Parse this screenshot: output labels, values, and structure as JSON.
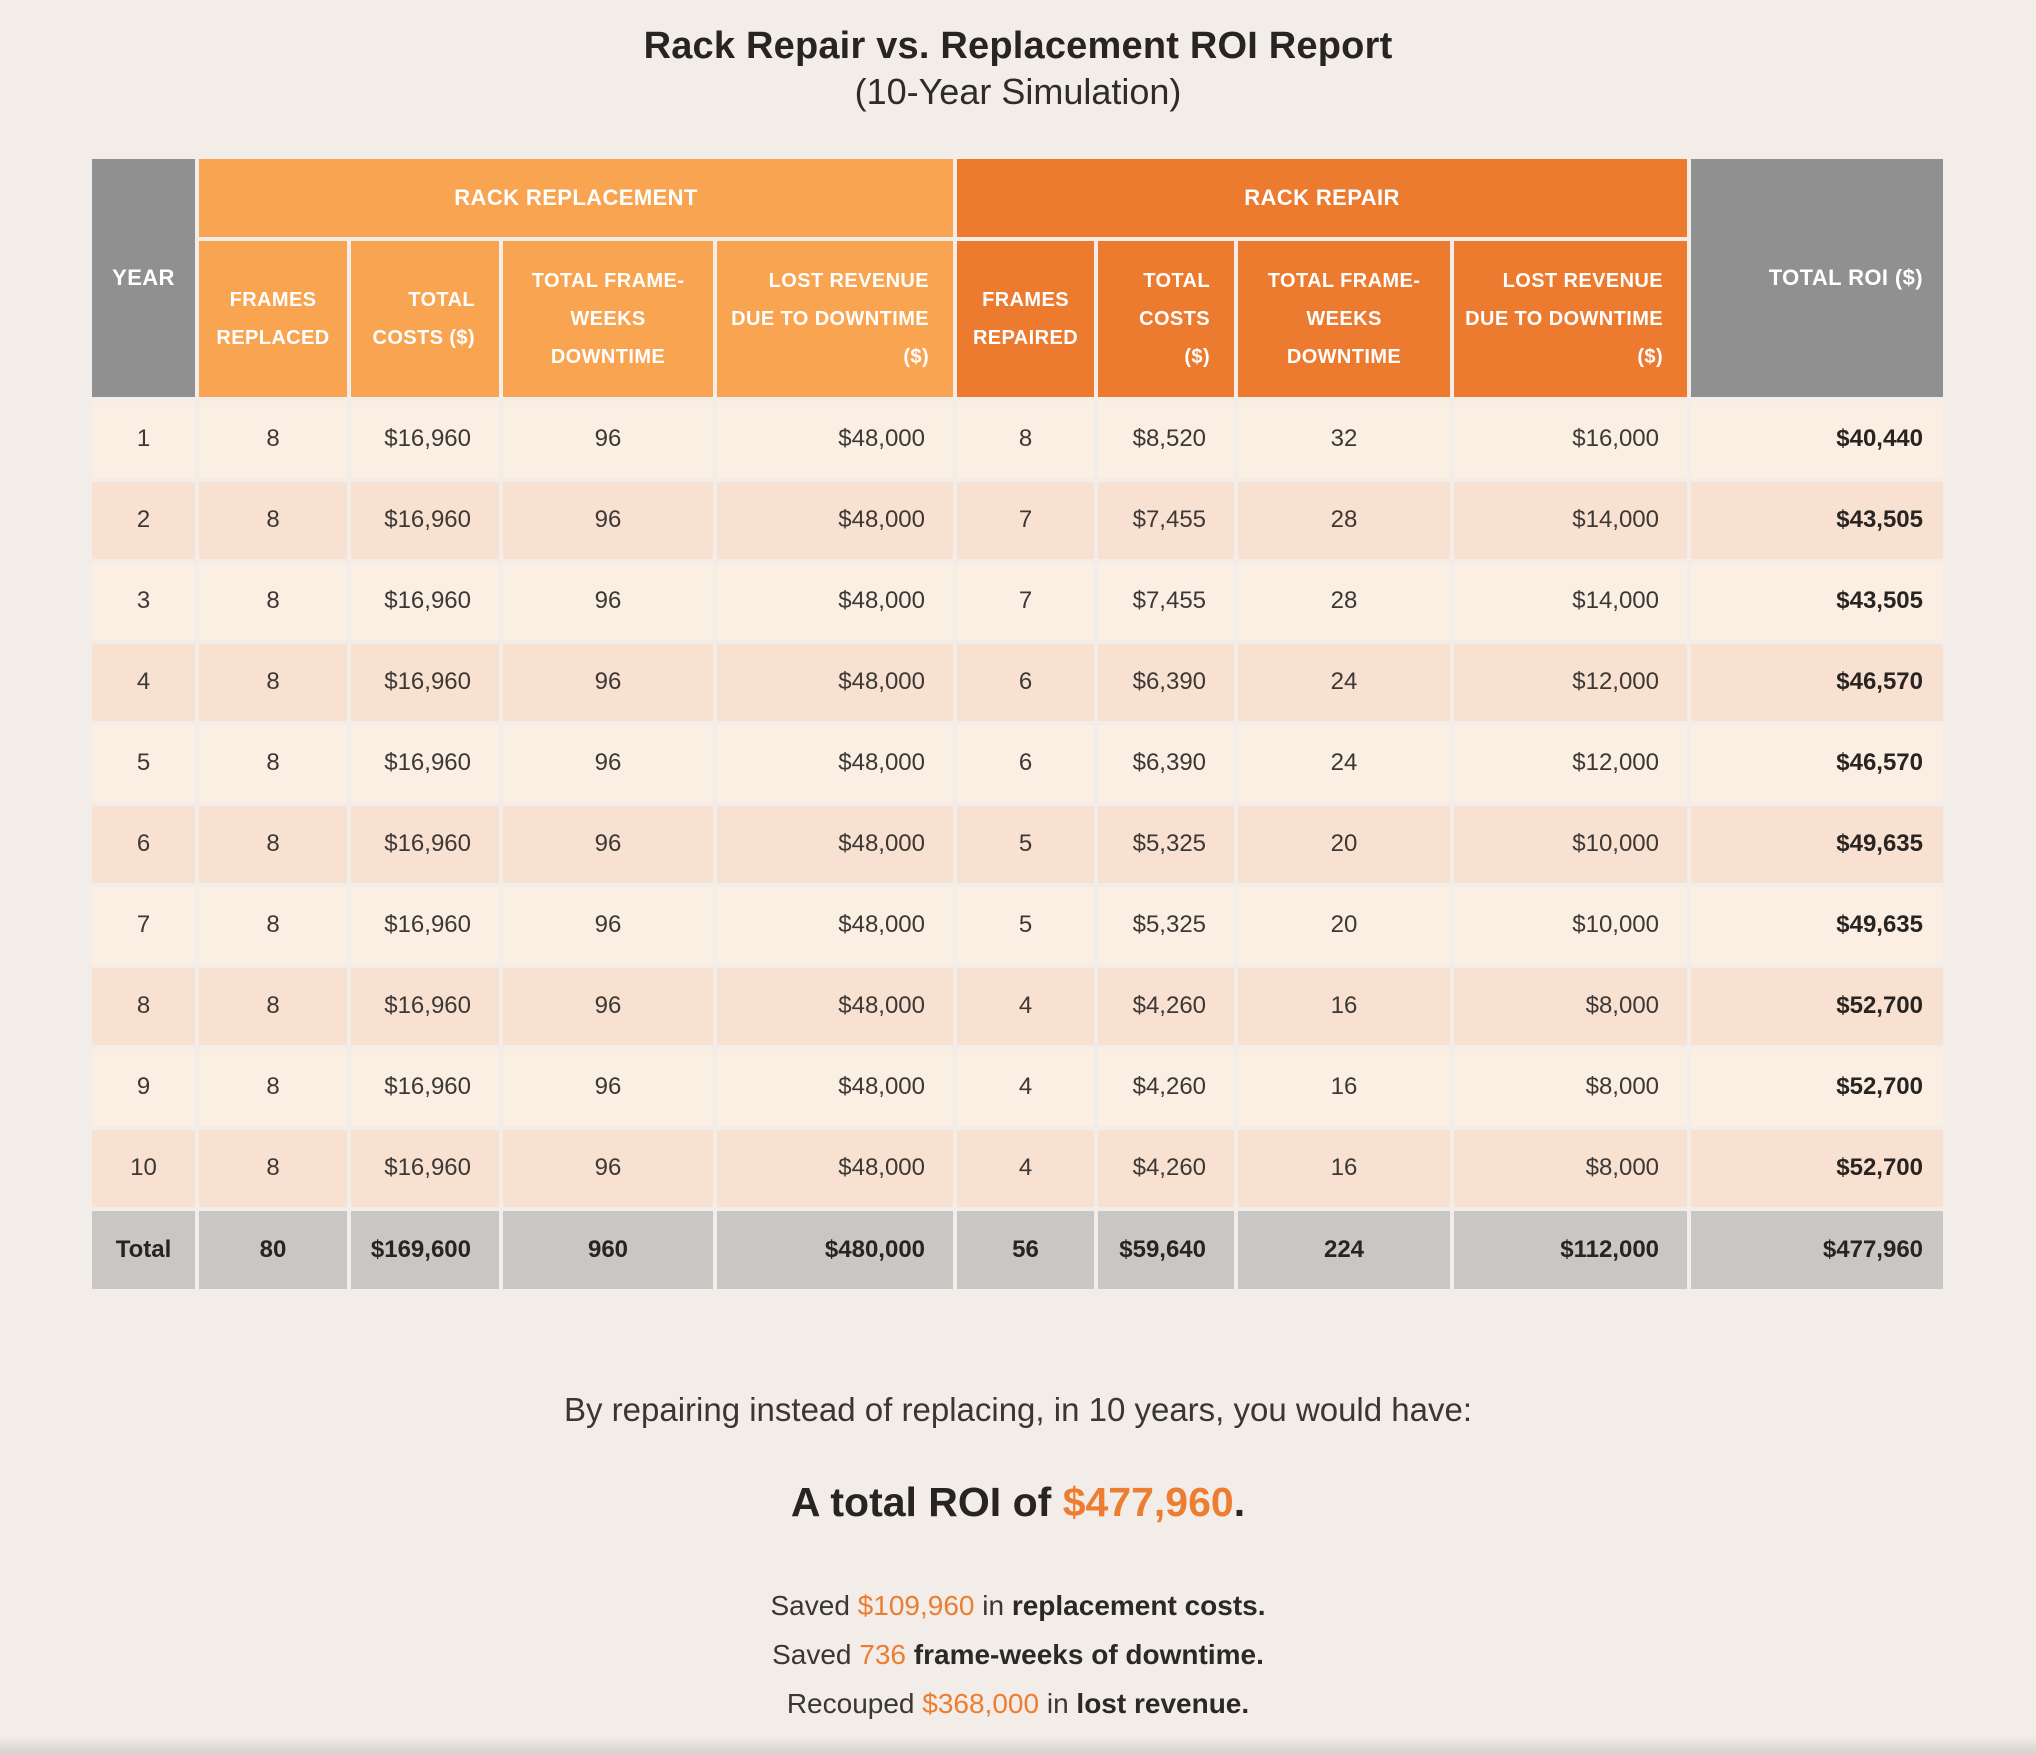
{
  "title": {
    "line1": "Rack Repair vs. Replacement ROI Report",
    "line2": "(10-Year Simulation)"
  },
  "table": {
    "year_header": "YEAR",
    "roi_header": "TOTAL ROI ($)",
    "groups": [
      {
        "label": "RACK REPLACEMENT",
        "columns": [
          "FRAMES\nREPLACED",
          "TOTAL\nCOSTS ($)",
          "TOTAL FRAME-\nWEEKS\nDOWNTIME",
          "LOST REVENUE\nDUE TO DOWNTIME\n($)"
        ]
      },
      {
        "label": "RACK REPAIR",
        "columns": [
          "FRAMES\nREPAIRED",
          "TOTAL\nCOSTS\n($)",
          "TOTAL FRAME-\nWEEKS\nDOWNTIME",
          "LOST REVENUE\nDUE TO DOWNTIME\n($)"
        ]
      }
    ],
    "rows": [
      [
        "1",
        "8",
        "$16,960",
        "96",
        "$48,000",
        "8",
        "$8,520",
        "32",
        "$16,000",
        "$40,440"
      ],
      [
        "2",
        "8",
        "$16,960",
        "96",
        "$48,000",
        "7",
        "$7,455",
        "28",
        "$14,000",
        "$43,505"
      ],
      [
        "3",
        "8",
        "$16,960",
        "96",
        "$48,000",
        "7",
        "$7,455",
        "28",
        "$14,000",
        "$43,505"
      ],
      [
        "4",
        "8",
        "$16,960",
        "96",
        "$48,000",
        "6",
        "$6,390",
        "24",
        "$12,000",
        "$46,570"
      ],
      [
        "5",
        "8",
        "$16,960",
        "96",
        "$48,000",
        "6",
        "$6,390",
        "24",
        "$12,000",
        "$46,570"
      ],
      [
        "6",
        "8",
        "$16,960",
        "96",
        "$48,000",
        "5",
        "$5,325",
        "20",
        "$10,000",
        "$49,635"
      ],
      [
        "7",
        "8",
        "$16,960",
        "96",
        "$48,000",
        "5",
        "$5,325",
        "20",
        "$10,000",
        "$49,635"
      ],
      [
        "8",
        "8",
        "$16,960",
        "96",
        "$48,000",
        "4",
        "$4,260",
        "16",
        "$8,000",
        "$52,700"
      ],
      [
        "9",
        "8",
        "$16,960",
        "96",
        "$48,000",
        "4",
        "$4,260",
        "16",
        "$8,000",
        "$52,700"
      ],
      [
        "10",
        "8",
        "$16,960",
        "96",
        "$48,000",
        "4",
        "$4,260",
        "16",
        "$8,000",
        "$52,700"
      ]
    ],
    "total_row": [
      "Total",
      "80",
      "$169,600",
      "960",
      "$480,000",
      "56",
      "$59,640",
      "224",
      "$112,000",
      "$477,960"
    ]
  },
  "summary": {
    "intro": "By repairing instead of replacing, in 10 years, you would have:",
    "roi_prefix": "A total ROI of ",
    "roi_value": "$477,960",
    "roi_suffix": ".",
    "lines": [
      {
        "prefix": "Saved ",
        "highlight": "$109,960",
        "middle": " in ",
        "bold": "replacement costs."
      },
      {
        "prefix": "Saved ",
        "highlight": "736",
        "middle": " ",
        "bold": "frame-weeks of downtime."
      },
      {
        "prefix": "Recouped ",
        "highlight": "$368,000",
        "middle": " in ",
        "bold": "lost revenue."
      }
    ]
  },
  "colors": {
    "accent_orange": "#ED7D31",
    "light_orange": "#F9A451",
    "dark_orange": "#EC7B2F",
    "header_gray": "#909090",
    "total_row_gray": "#C9C7C4",
    "row_light": "#FBEEE3",
    "row_dark": "#F8E1D0",
    "background": "#F2EDE8"
  }
}
